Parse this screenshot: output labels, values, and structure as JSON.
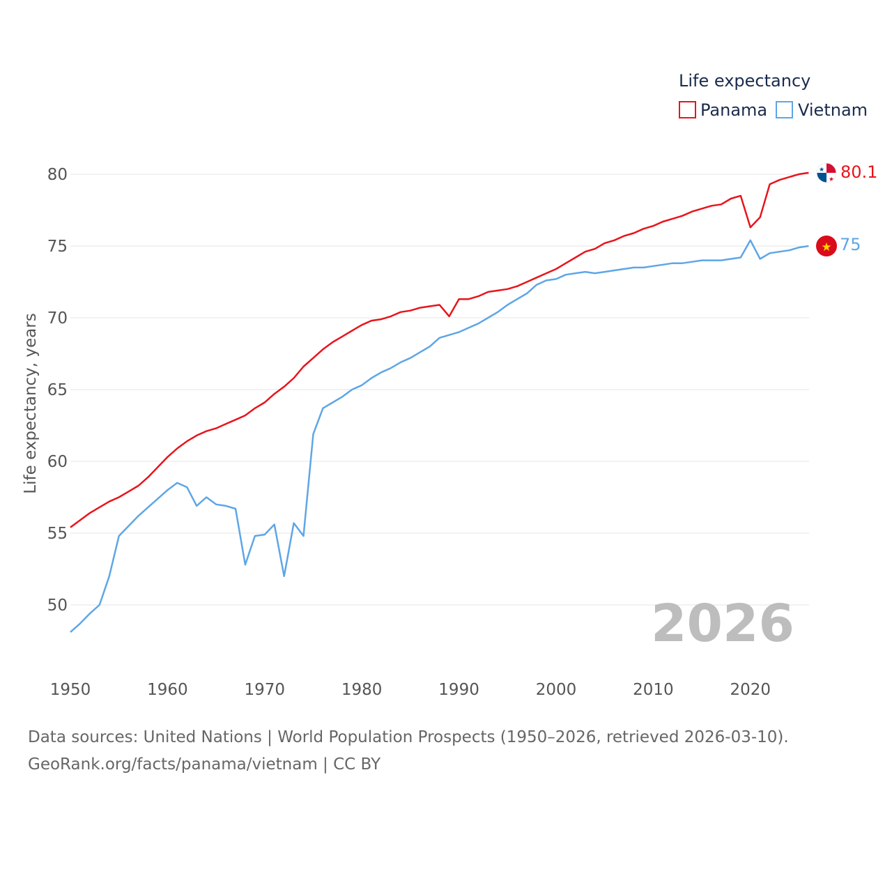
{
  "colors": {
    "panama": "#e8141b",
    "vietnam": "#5ea6e6",
    "grid": "#e6e6e6",
    "tick": "#555555",
    "watermark": "#bdbdbd"
  },
  "legend": {
    "title": "Life expectancy",
    "items": [
      {
        "label": "Panama",
        "color": "#e8141b"
      },
      {
        "label": "Vietnam",
        "color": "#5ea6e6"
      }
    ]
  },
  "end_labels": {
    "panama": "80.1",
    "vietnam": "75"
  },
  "flags": {
    "panama": "panama-flag-icon",
    "vietnam": "vietnam-flag-icon"
  },
  "year_watermark": "2026",
  "footer": {
    "line1": "Data sources: United Nations | World Population Prospects (1950–2026, retrieved 2026-03-10).",
    "line2": "GeoRank.org/facts/panama/vietnam | CC BY"
  },
  "chart_data": {
    "type": "line",
    "title": "Life expectancy",
    "xlabel": "",
    "ylabel": "Life expectancy, years",
    "xlim": [
      1950,
      2026
    ],
    "ylim": [
      47.2,
      82.5
    ],
    "xticks": [
      1950,
      1960,
      1970,
      1980,
      1990,
      2000,
      2010,
      2020
    ],
    "yticks": [
      50,
      55,
      60,
      65,
      70,
      75,
      80
    ],
    "grid": true,
    "legend_position": "top-right",
    "x": [
      1950,
      1951,
      1952,
      1953,
      1954,
      1955,
      1956,
      1957,
      1958,
      1959,
      1960,
      1961,
      1962,
      1963,
      1964,
      1965,
      1966,
      1967,
      1968,
      1969,
      1970,
      1971,
      1972,
      1973,
      1974,
      1975,
      1976,
      1977,
      1978,
      1979,
      1980,
      1981,
      1982,
      1983,
      1984,
      1985,
      1986,
      1987,
      1988,
      1989,
      1990,
      1991,
      1992,
      1993,
      1994,
      1995,
      1996,
      1997,
      1998,
      1999,
      2000,
      2001,
      2002,
      2003,
      2004,
      2005,
      2006,
      2007,
      2008,
      2009,
      2010,
      2011,
      2012,
      2013,
      2014,
      2015,
      2016,
      2017,
      2018,
      2019,
      2020,
      2021,
      2022,
      2023,
      2024,
      2025,
      2026
    ],
    "series": [
      {
        "name": "Panama",
        "values": [
          55.4,
          55.9,
          56.4,
          56.8,
          57.2,
          57.5,
          57.9,
          58.3,
          58.9,
          59.6,
          60.3,
          60.9,
          61.4,
          61.8,
          62.1,
          62.3,
          62.6,
          62.9,
          63.2,
          63.7,
          64.1,
          64.7,
          65.2,
          65.8,
          66.6,
          67.2,
          67.8,
          68.3,
          68.7,
          69.1,
          69.5,
          69.8,
          69.9,
          70.1,
          70.4,
          70.5,
          70.7,
          70.8,
          70.9,
          70.1,
          71.3,
          71.3,
          71.5,
          71.8,
          71.9,
          72.0,
          72.2,
          72.5,
          72.8,
          73.1,
          73.4,
          73.8,
          74.2,
          74.6,
          74.8,
          75.2,
          75.4,
          75.7,
          75.9,
          76.2,
          76.4,
          76.7,
          76.9,
          77.1,
          77.4,
          77.6,
          77.8,
          77.9,
          78.3,
          78.5,
          76.3,
          77.0,
          79.3,
          79.6,
          79.8,
          80.0,
          80.1
        ]
      },
      {
        "name": "Vietnam",
        "values": [
          48.1,
          48.7,
          49.4,
          50.0,
          52.0,
          54.8,
          55.5,
          56.2,
          56.8,
          57.4,
          58.0,
          58.5,
          58.2,
          56.9,
          57.5,
          57.0,
          56.9,
          56.7,
          52.8,
          54.8,
          54.9,
          55.6,
          52.0,
          55.7,
          54.8,
          61.9,
          63.7,
          64.1,
          64.5,
          65.0,
          65.3,
          65.8,
          66.2,
          66.5,
          66.9,
          67.2,
          67.6,
          68.0,
          68.6,
          68.8,
          69.0,
          69.3,
          69.6,
          70.0,
          70.4,
          70.9,
          71.3,
          71.7,
          72.3,
          72.6,
          72.7,
          73.0,
          73.1,
          73.2,
          73.1,
          73.2,
          73.3,
          73.4,
          73.5,
          73.5,
          73.6,
          73.7,
          73.8,
          73.8,
          73.9,
          74.0,
          74.0,
          74.0,
          74.1,
          74.2,
          75.4,
          74.1,
          74.5,
          74.6,
          74.7,
          74.9,
          75.0
        ]
      }
    ]
  }
}
